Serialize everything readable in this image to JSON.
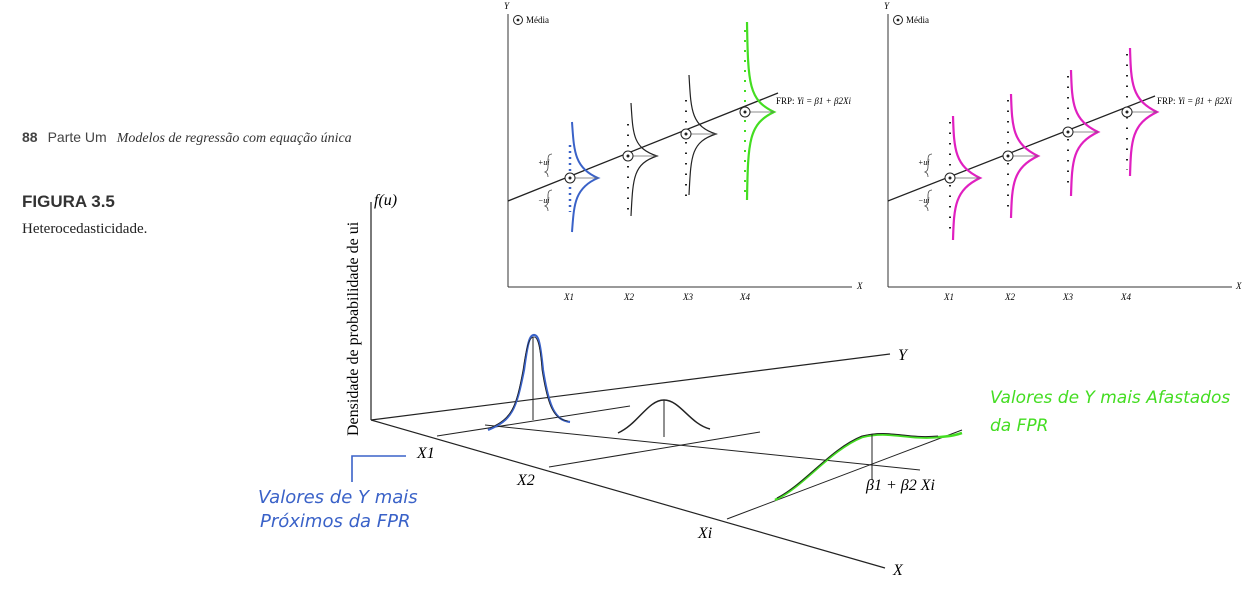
{
  "header": {
    "page_number": "88",
    "part": "Parte Um",
    "title": "Modelos de regressão com equação única"
  },
  "figure": {
    "label": "FIGURA 3.5",
    "caption": "Heterocedasticidade."
  },
  "panels": {
    "y_axis": "Y",
    "x_axis": "X",
    "legend": "Média",
    "prf_prefix": "FRP:",
    "prf_eq": "Yi = β1 + β2Xi",
    "x_ticks": [
      "X1",
      "X2",
      "X3",
      "X4"
    ],
    "plus_u": "+ui",
    "minus_u": "−ui"
  },
  "main": {
    "y_axis_label": "Densidade de probabilidade de ui",
    "f_label": "f(u)",
    "y_axis": "Y",
    "x_axis": "X",
    "x1": "X1",
    "x2": "X2",
    "xi": "Xi",
    "line_label": "β1 + β2 Xi"
  },
  "annotations": {
    "blue_line1": "Valores de Y mais",
    "blue_line2": "Próximos da FPR",
    "green_line1": "Valores de Y mais Afastados",
    "green_line2": "da FPR"
  },
  "colors": {
    "blue": "#3a62c8",
    "green": "#44dd22",
    "magenta": "#e020c0"
  }
}
